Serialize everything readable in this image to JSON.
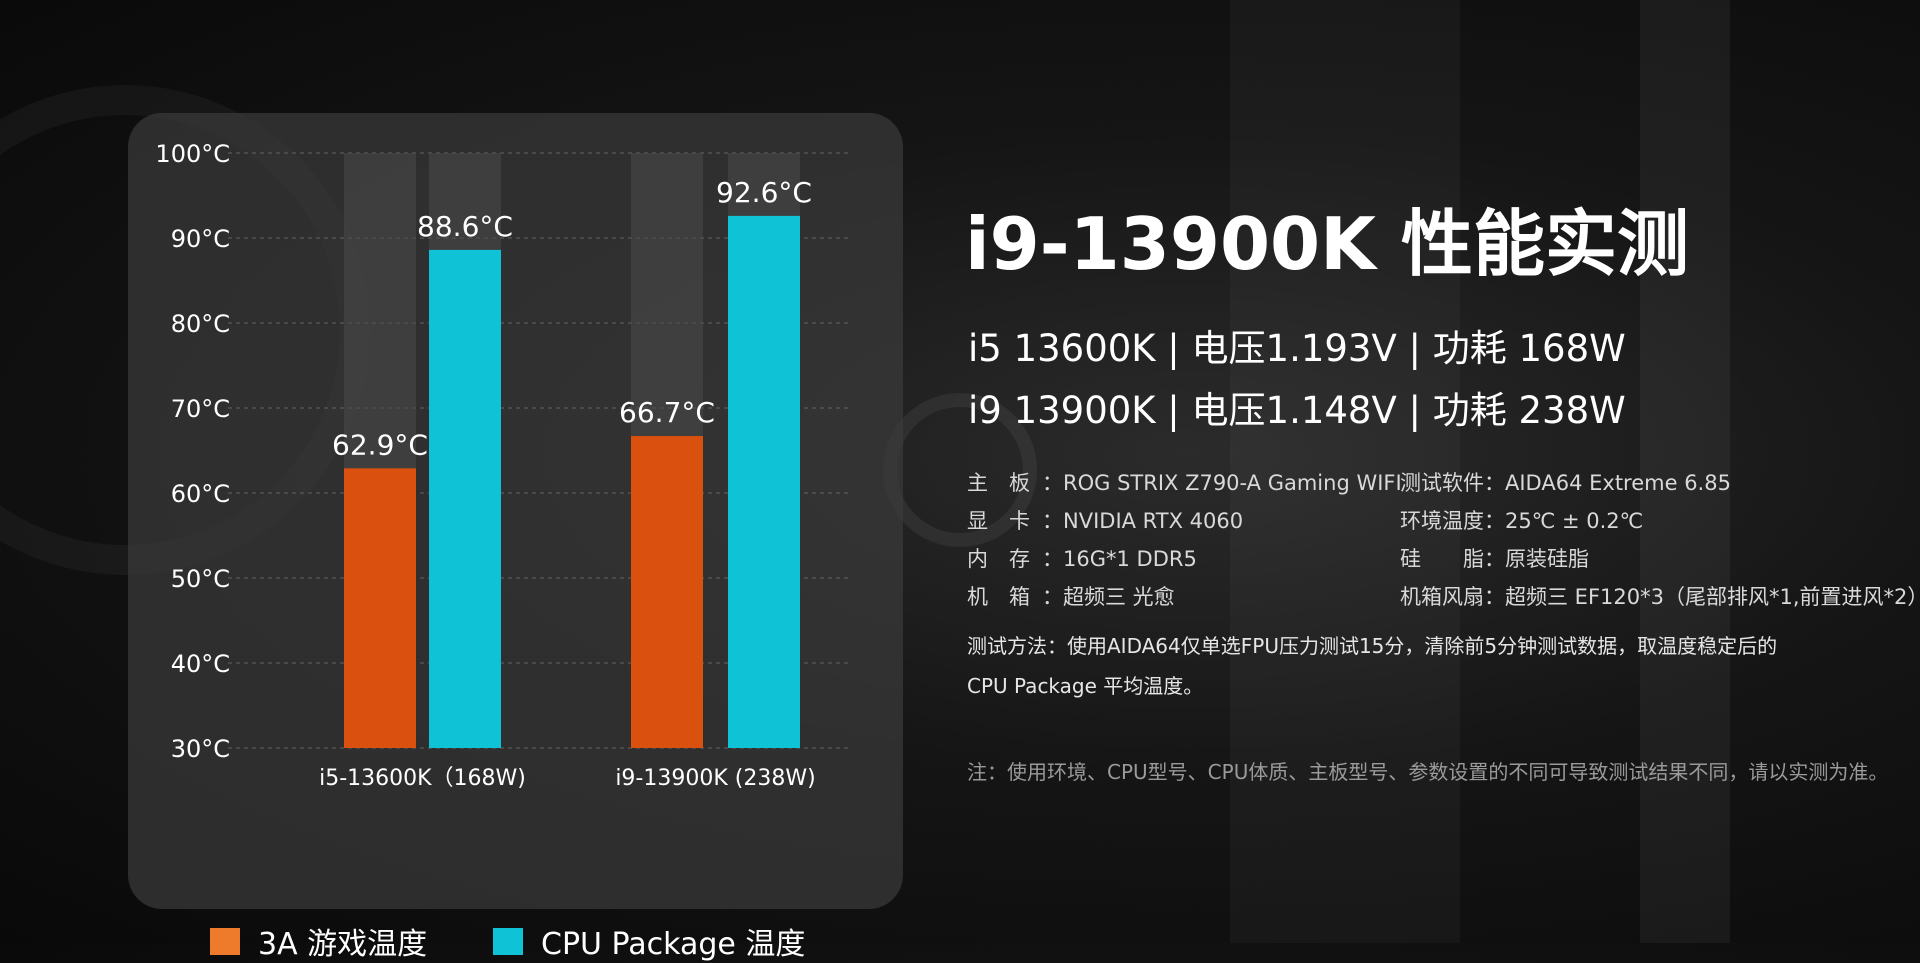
{
  "colors": {
    "game_temp": "#D9500F",
    "cpu_package_temp": "#0FC2D6",
    "legend_game": "#EE7A2C",
    "legend_cpu": "#0FC2D6",
    "bar_track": "#4a4a4a"
  },
  "title": "i9-13900K 性能实测",
  "spec_lines": [
    "i5 13600K | 电压1.193V | 功耗 168W",
    "i9 13900K | 电压1.148V | 功耗 238W"
  ],
  "details": {
    "left": [
      {
        "k": "主　板",
        "v": "ROG STRIX Z790-A Gaming WIFI"
      },
      {
        "k": "显　卡",
        "v": "NVIDIA RTX 4060"
      },
      {
        "k": "内　存",
        "v": "16G*1 DDR5"
      },
      {
        "k": "机　箱",
        "v": "超频三 光愈"
      }
    ],
    "right": [
      {
        "k": "测试软件",
        "v": "AIDA64 Extreme 6.85"
      },
      {
        "k": "环境温度",
        "v": "25℃ ± 0.2℃"
      },
      {
        "k": "硅　　脂",
        "v": "原装硅脂"
      },
      {
        "k": "机箱风扇",
        "v": "超频三 EF120*3（尾部排风*1,前置进风*2）"
      }
    ]
  },
  "method_lines": [
    "测试方法：使用AIDA64仅单选FPU压力测试15分，清除前5分钟测试数据，取温度稳定后的",
    "CPU Package 平均温度。"
  ],
  "note": "注：使用环境、CPU型号、CPU体质、主板型号、参数设置的不同可导致测试结果不同，请以实测为准。",
  "chart_data": {
    "type": "bar",
    "categories": [
      "i5-13600K（168W)",
      "i9-13900K (238W)"
    ],
    "series": [
      {
        "name": "3A 游戏温度",
        "values": [
          62.9,
          66.7
        ],
        "labels": [
          "62.9°C",
          "66.7°C"
        ]
      },
      {
        "name": "CPU Package 温度",
        "values": [
          88.6,
          92.6
        ],
        "labels": [
          "88.6°C",
          "92.6°C"
        ]
      }
    ],
    "y_ticks": [
      "100°C",
      "90°C",
      "80°C",
      "70°C",
      "60°C",
      "50°C",
      "40°C",
      "30°C"
    ],
    "ylim": [
      30,
      100
    ],
    "grid": true,
    "legend_position": "bottom"
  }
}
